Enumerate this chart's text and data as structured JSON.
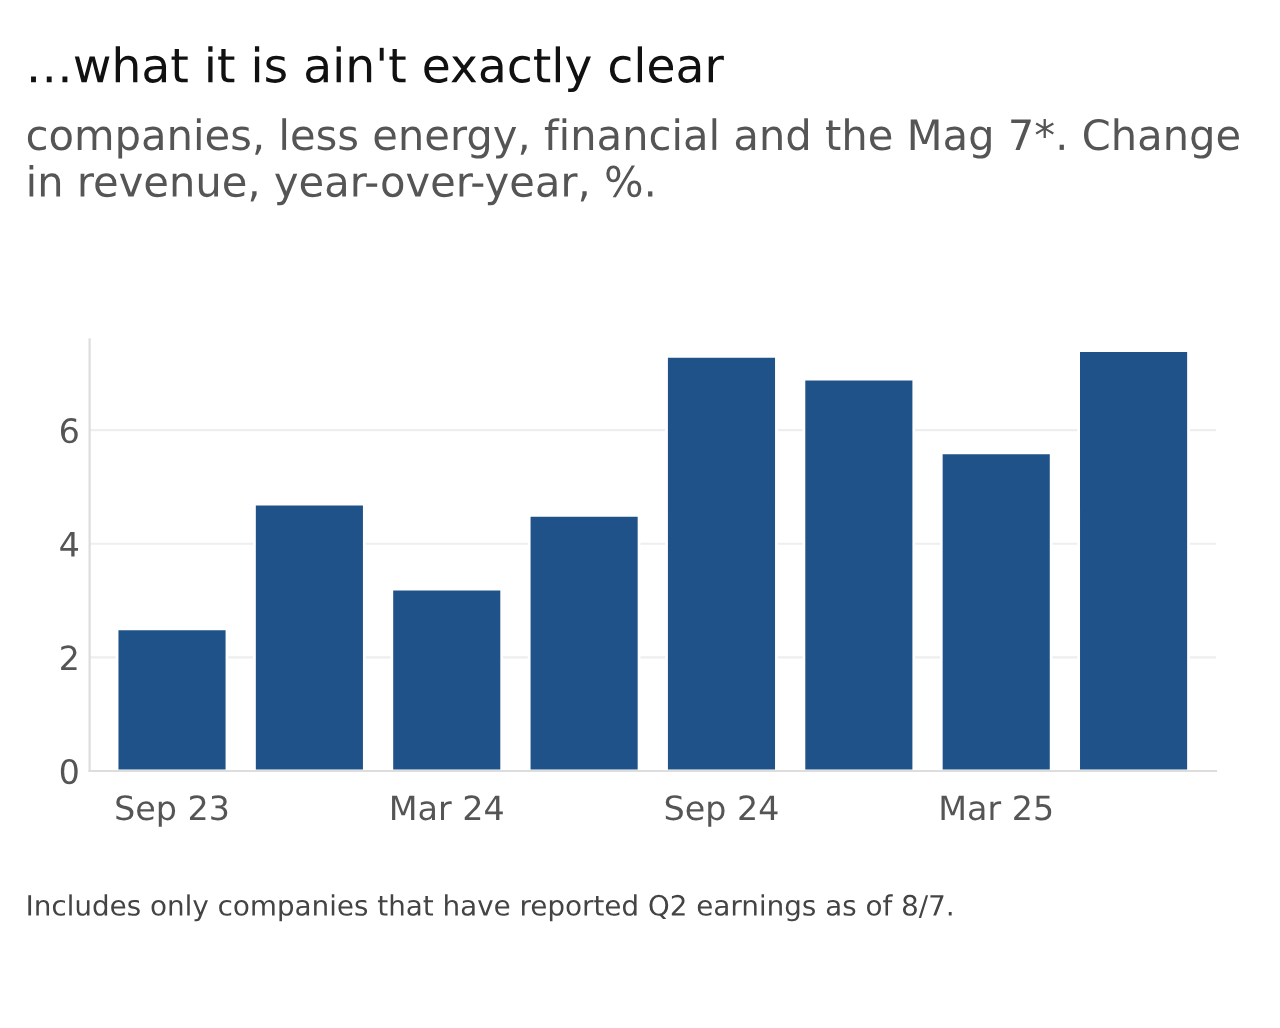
{
  "chart_data": {
    "type": "bar",
    "title": "…what it is ain't exactly clear",
    "subtitle": "companies, less energy, financial and the Mag 7*. Change in revenue, year-over-year, %.",
    "categories": [
      "Sep 23",
      null,
      "Mar 24",
      null,
      "Sep 24",
      null,
      "Mar 25",
      null
    ],
    "values": [
      2.5,
      4.7,
      3.2,
      4.5,
      7.3,
      6.9,
      5.6,
      7.4
    ],
    "color": "#1f5289",
    "ylim": [
      0,
      7.6
    ],
    "yticks": [
      0,
      2,
      4,
      6
    ],
    "grid": "y",
    "annotations": [
      "Includes only companies that have reported Q2 earnings as of 8/7."
    ]
  }
}
